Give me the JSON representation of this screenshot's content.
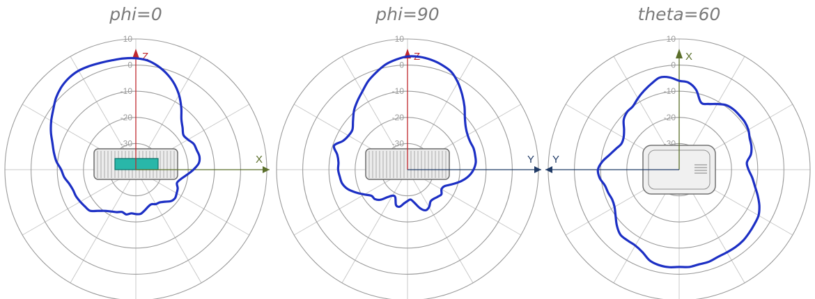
{
  "chart_data": [
    {
      "type": "polar-line",
      "title": "phi=0",
      "r_unit": "dB",
      "r_ticks": [
        -30,
        -20,
        -10,
        0,
        10
      ],
      "r_range": [
        -40,
        10
      ],
      "axes": {
        "vertical": "Z",
        "horizontal": "X",
        "horizontal_direction": "right"
      },
      "series_color": "#1c2fc4",
      "object": {
        "shape": "box",
        "has_cyan_component": true
      },
      "series": [
        {
          "values_db": [
            2.6,
            2.0,
            0.5,
            -1.5,
            -4.0,
            -7.0,
            -10.5,
            -14.0,
            -16.0,
            -17.5,
            -17.0,
            -15.8,
            -15.6,
            -15.2,
            -15.8,
            -18.0,
            -20.5,
            -22.5,
            -23.5,
            -22.5,
            -22.0,
            -21.5,
            -22.0,
            -23.5,
            -24.5,
            -24.8,
            -25.5,
            -25.0,
            -24.0,
            -23.0,
            -23.0,
            -23.2,
            -22.5,
            -23.0,
            -22.2,
            -21.5,
            -20.5,
            -18.8,
            -16.5,
            -16.0,
            -15.5,
            -15.0,
            -14.8,
            -14.0,
            -12.5,
            -11.5,
            -9.5,
            -8.0,
            -6.5,
            -4.5,
            -2.7,
            -1.0,
            1.0,
            2.5,
            3.4,
            3.7,
            3.4,
            3.0,
            2.8,
            2.8
          ]
        }
      ]
    },
    {
      "type": "polar-line",
      "title": "phi=90",
      "r_unit": "dB",
      "r_ticks": [
        -30,
        -20,
        -10,
        0,
        10
      ],
      "r_range": [
        -40,
        10
      ],
      "axes": {
        "vertical": "Z",
        "horizontal": "Y",
        "horizontal_direction": "right"
      },
      "series_color": "#1c2fc4",
      "object": {
        "shape": "box",
        "has_cyan_component": false
      },
      "series": [
        {
          "values_db": [
            3.3,
            3.4,
            3.0,
            2.2,
            1.0,
            -1.5,
            -4.5,
            -7.5,
            -10.5,
            -12.5,
            -13.5,
            -13.8,
            -13.5,
            -13.6,
            -13.8,
            -14.8,
            -16.5,
            -19.0,
            -22.0,
            -24.5,
            -25.0,
            -24.0,
            -24.5,
            -25.0,
            -25.0,
            -23.5,
            -23.0,
            -24.5,
            -27.0,
            -28.5,
            -28.0,
            -27.0,
            -25.5,
            -25.8,
            -28.5,
            -28.5,
            -27.0,
            -24.5,
            -23.2,
            -23.0,
            -21.0,
            -18.5,
            -16.0,
            -14.5,
            -14.0,
            -13.5,
            -13.5,
            -12.6,
            -10.5,
            -13.0,
            -14.0,
            -14.0,
            -12.0,
            -9.5,
            -7.5,
            -5.5,
            -3.0,
            -1.0,
            1.0,
            2.3
          ]
        }
      ]
    },
    {
      "type": "polar-line",
      "title": "theta=60",
      "r_unit": "dB",
      "r_ticks": [
        -30,
        -20,
        -10,
        0,
        10
      ],
      "r_range": [
        -40,
        10
      ],
      "axes": {
        "vertical": "X",
        "horizontal": "Y",
        "horizontal_direction": "left"
      },
      "series_color": "#1c2fc4",
      "object": {
        "shape": "rounded-box",
        "has_cyan_component": false
      },
      "series": [
        {
          "values_db": [
            -6.0,
            -6.5,
            -8.8,
            -13.0,
            -12.5,
            -11.0,
            -9.5,
            -9.0,
            -9.0,
            -9.0,
            -9.5,
            -10.5,
            -11.0,
            -12.0,
            -14.0,
            -13.5,
            -12.0,
            -10.5,
            -8.5,
            -6.5,
            -5.0,
            -4.5,
            -4.0,
            -3.5,
            -3.4,
            -3.5,
            -3.5,
            -3.0,
            -3.0,
            -2.6,
            -2.8,
            -2.5,
            -2.7,
            -3.5,
            -5.5,
            -6.5,
            -6.5,
            -6.5,
            -8.0,
            -10.0,
            -11.5,
            -12.0,
            -11.5,
            -11.0,
            -9.5,
            -9.0,
            -10.5,
            -12.8,
            -14.5,
            -15.8,
            -15.5,
            -14.0,
            -11.5,
            -10.3,
            -10.0,
            -8.5,
            -7.0,
            -5.5,
            -4.0,
            -4.5
          ]
        }
      ]
    }
  ]
}
